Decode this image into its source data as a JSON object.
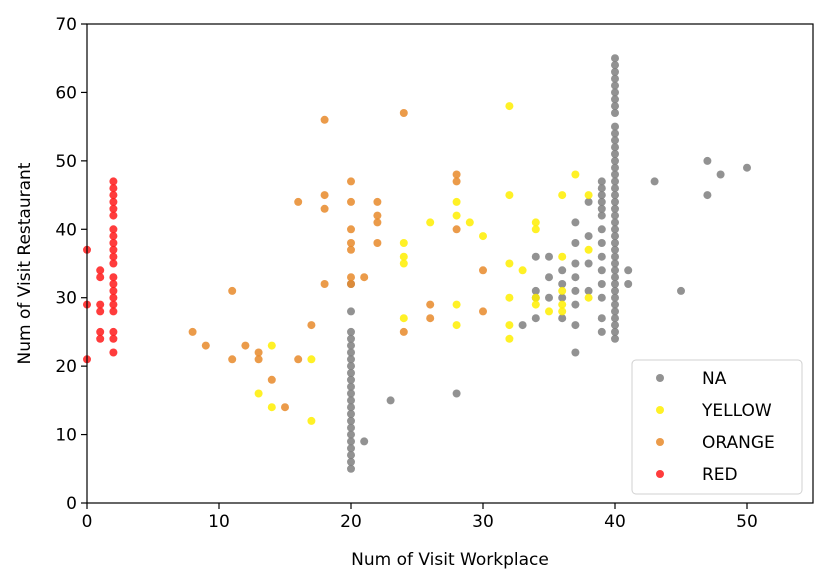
{
  "chart_data": {
    "type": "scatter",
    "title": "",
    "xlabel": "Num of Visit Workplace",
    "ylabel": "Num of Visit Restaurant",
    "xlim": [
      0,
      55
    ],
    "ylim": [
      0,
      70
    ],
    "xticks": [
      0,
      10,
      20,
      30,
      40,
      50
    ],
    "yticks": [
      0,
      10,
      20,
      30,
      40,
      50,
      60,
      70
    ],
    "grid": false,
    "legend_position": "lower-right",
    "series": [
      {
        "name": "NA",
        "color": "#7f7f7f",
        "points": [
          [
            20,
            5
          ],
          [
            20,
            6
          ],
          [
            20,
            7
          ],
          [
            20,
            8
          ],
          [
            20,
            9
          ],
          [
            20,
            10
          ],
          [
            20,
            11
          ],
          [
            20,
            12
          ],
          [
            20,
            13
          ],
          [
            20,
            14
          ],
          [
            20,
            15
          ],
          [
            20,
            16
          ],
          [
            20,
            17
          ],
          [
            20,
            18
          ],
          [
            20,
            19
          ],
          [
            20,
            20
          ],
          [
            20,
            21
          ],
          [
            20,
            22
          ],
          [
            20,
            23
          ],
          [
            20,
            24
          ],
          [
            20,
            25
          ],
          [
            20,
            28
          ],
          [
            20,
            32
          ],
          [
            21,
            9
          ],
          [
            23,
            15
          ],
          [
            28,
            16
          ],
          [
            33,
            26
          ],
          [
            34,
            27
          ],
          [
            34,
            30
          ],
          [
            34,
            31
          ],
          [
            34,
            36
          ],
          [
            35,
            30
          ],
          [
            35,
            33
          ],
          [
            35,
            36
          ],
          [
            36,
            27
          ],
          [
            36,
            30
          ],
          [
            36,
            32
          ],
          [
            36,
            34
          ],
          [
            37,
            22
          ],
          [
            37,
            26
          ],
          [
            37,
            29
          ],
          [
            37,
            31
          ],
          [
            37,
            33
          ],
          [
            37,
            35
          ],
          [
            37,
            38
          ],
          [
            37,
            41
          ],
          [
            38,
            31
          ],
          [
            38,
            35
          ],
          [
            38,
            39
          ],
          [
            38,
            44
          ],
          [
            39,
            25
          ],
          [
            39,
            27
          ],
          [
            39,
            30
          ],
          [
            39,
            32
          ],
          [
            39,
            34
          ],
          [
            39,
            36
          ],
          [
            39,
            38
          ],
          [
            39,
            40
          ],
          [
            39,
            42
          ],
          [
            39,
            43
          ],
          [
            39,
            44
          ],
          [
            39,
            45
          ],
          [
            39,
            46
          ],
          [
            39,
            47
          ],
          [
            40,
            24
          ],
          [
            40,
            25
          ],
          [
            40,
            26
          ],
          [
            40,
            27
          ],
          [
            40,
            28
          ],
          [
            40,
            29
          ],
          [
            40,
            30
          ],
          [
            40,
            31
          ],
          [
            40,
            32
          ],
          [
            40,
            33
          ],
          [
            40,
            34
          ],
          [
            40,
            35
          ],
          [
            40,
            36
          ],
          [
            40,
            37
          ],
          [
            40,
            38
          ],
          [
            40,
            39
          ],
          [
            40,
            40
          ],
          [
            40,
            41
          ],
          [
            40,
            42
          ],
          [
            40,
            43
          ],
          [
            40,
            44
          ],
          [
            40,
            45
          ],
          [
            40,
            46
          ],
          [
            40,
            47
          ],
          [
            40,
            48
          ],
          [
            40,
            49
          ],
          [
            40,
            50
          ],
          [
            40,
            51
          ],
          [
            40,
            52
          ],
          [
            40,
            53
          ],
          [
            40,
            54
          ],
          [
            40,
            55
          ],
          [
            40,
            57
          ],
          [
            40,
            58
          ],
          [
            40,
            59
          ],
          [
            40,
            60
          ],
          [
            40,
            61
          ],
          [
            40,
            62
          ],
          [
            40,
            63
          ],
          [
            40,
            64
          ],
          [
            40,
            65
          ],
          [
            41,
            32
          ],
          [
            41,
            34
          ],
          [
            43,
            47
          ],
          [
            45,
            31
          ],
          [
            47,
            45
          ],
          [
            47,
            50
          ],
          [
            48,
            48
          ],
          [
            50,
            49
          ]
        ]
      },
      {
        "name": "YELLOW",
        "color": "#ffee00",
        "points": [
          [
            13,
            16
          ],
          [
            14,
            14
          ],
          [
            14,
            23
          ],
          [
            17,
            12
          ],
          [
            17,
            21
          ],
          [
            24,
            27
          ],
          [
            24,
            35
          ],
          [
            24,
            36
          ],
          [
            24,
            38
          ],
          [
            26,
            41
          ],
          [
            28,
            26
          ],
          [
            28,
            29
          ],
          [
            28,
            42
          ],
          [
            28,
            44
          ],
          [
            29,
            41
          ],
          [
            30,
            39
          ],
          [
            32,
            24
          ],
          [
            32,
            26
          ],
          [
            32,
            30
          ],
          [
            32,
            35
          ],
          [
            32,
            45
          ],
          [
            32,
            58
          ],
          [
            33,
            34
          ],
          [
            34,
            29
          ],
          [
            34,
            30
          ],
          [
            34,
            40
          ],
          [
            34,
            41
          ],
          [
            35,
            28
          ],
          [
            36,
            28
          ],
          [
            36,
            29
          ],
          [
            36,
            31
          ],
          [
            36,
            36
          ],
          [
            36,
            45
          ],
          [
            37,
            48
          ],
          [
            38,
            30
          ],
          [
            38,
            37
          ],
          [
            38,
            45
          ]
        ]
      },
      {
        "name": "ORANGE",
        "color": "#e8892a",
        "points": [
          [
            8,
            25
          ],
          [
            9,
            23
          ],
          [
            11,
            21
          ],
          [
            11,
            31
          ],
          [
            12,
            23
          ],
          [
            13,
            21
          ],
          [
            13,
            22
          ],
          [
            14,
            18
          ],
          [
            15,
            14
          ],
          [
            16,
            21
          ],
          [
            16,
            44
          ],
          [
            17,
            26
          ],
          [
            18,
            32
          ],
          [
            18,
            43
          ],
          [
            18,
            45
          ],
          [
            18,
            56
          ],
          [
            20,
            32
          ],
          [
            20,
            33
          ],
          [
            20,
            37
          ],
          [
            20,
            38
          ],
          [
            20,
            40
          ],
          [
            20,
            44
          ],
          [
            20,
            47
          ],
          [
            21,
            33
          ],
          [
            22,
            38
          ],
          [
            22,
            41
          ],
          [
            22,
            42
          ],
          [
            22,
            44
          ],
          [
            24,
            25
          ],
          [
            24,
            57
          ],
          [
            26,
            27
          ],
          [
            26,
            29
          ],
          [
            28,
            40
          ],
          [
            28,
            47
          ],
          [
            28,
            48
          ],
          [
            30,
            28
          ],
          [
            30,
            34
          ]
        ]
      },
      {
        "name": "RED",
        "color": "#ff1a1a",
        "points": [
          [
            0,
            21
          ],
          [
            0,
            29
          ],
          [
            0,
            37
          ],
          [
            1,
            24
          ],
          [
            1,
            25
          ],
          [
            1,
            28
          ],
          [
            1,
            29
          ],
          [
            1,
            33
          ],
          [
            1,
            34
          ],
          [
            2,
            22
          ],
          [
            2,
            24
          ],
          [
            2,
            25
          ],
          [
            2,
            28
          ],
          [
            2,
            29
          ],
          [
            2,
            30
          ],
          [
            2,
            31
          ],
          [
            2,
            32
          ],
          [
            2,
            33
          ],
          [
            2,
            35
          ],
          [
            2,
            36
          ],
          [
            2,
            37
          ],
          [
            2,
            38
          ],
          [
            2,
            39
          ],
          [
            2,
            40
          ],
          [
            2,
            42
          ],
          [
            2,
            43
          ],
          [
            2,
            44
          ],
          [
            2,
            45
          ],
          [
            2,
            46
          ],
          [
            2,
            47
          ]
        ]
      }
    ]
  }
}
